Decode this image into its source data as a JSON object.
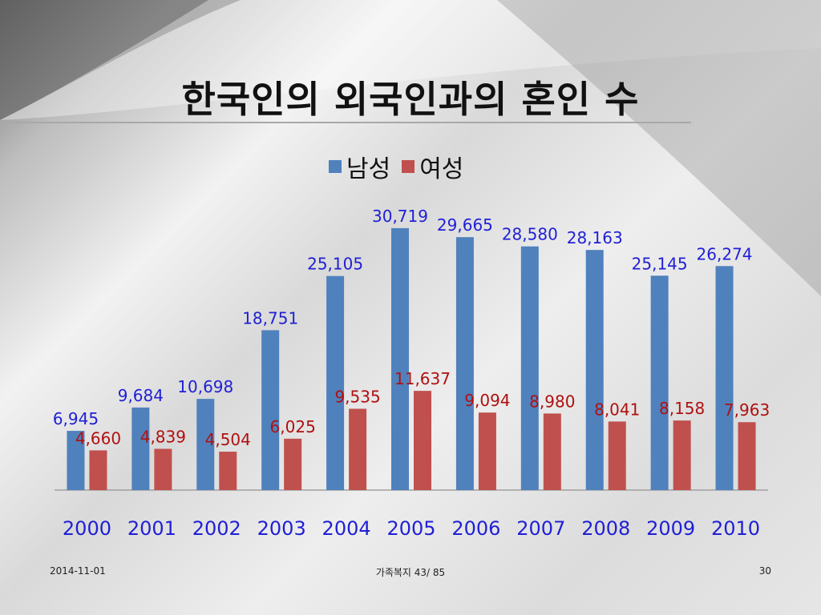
{
  "slide": {
    "title": "한국인의 외국인과의 혼인 수",
    "footer_date": "2014-11-01",
    "footer_center": "가족복지 43/ 85",
    "page_number": "30"
  },
  "colors": {
    "male_bar": "#4f81bd",
    "female_bar": "#c0504d",
    "male_label": "#1f1fd6",
    "female_label": "#b01010",
    "axis_label": "#1f1fd6",
    "baseline": "#a0a0a0"
  },
  "chart_data": {
    "type": "bar",
    "title": "",
    "xlabel": "",
    "ylabel": "",
    "ylim": [
      0,
      34000
    ],
    "grid": false,
    "legend_position": "top",
    "categories": [
      "2000",
      "2001",
      "2002",
      "2003",
      "2004",
      "2005",
      "2006",
      "2007",
      "2008",
      "2009",
      "2010"
    ],
    "series": [
      {
        "name": "남성",
        "values": [
          6945,
          9684,
          10698,
          18751,
          25105,
          30719,
          29665,
          28580,
          28163,
          25145,
          26274
        ],
        "labels": [
          "6,945",
          "9,684",
          "10,698",
          "18,751",
          "25,105",
          "30,719",
          "29,665",
          "28,580",
          "28,163",
          "25,145",
          "26,274"
        ]
      },
      {
        "name": "여성",
        "values": [
          4660,
          4839,
          4504,
          6025,
          9535,
          11637,
          9094,
          8980,
          8041,
          8158,
          7963
        ],
        "labels": [
          "4,660",
          "4,839",
          "4,504",
          "6,025",
          "9,535",
          "11,637",
          "9,094",
          "8,980",
          "8,041",
          "8,158",
          "7,963"
        ]
      }
    ]
  }
}
